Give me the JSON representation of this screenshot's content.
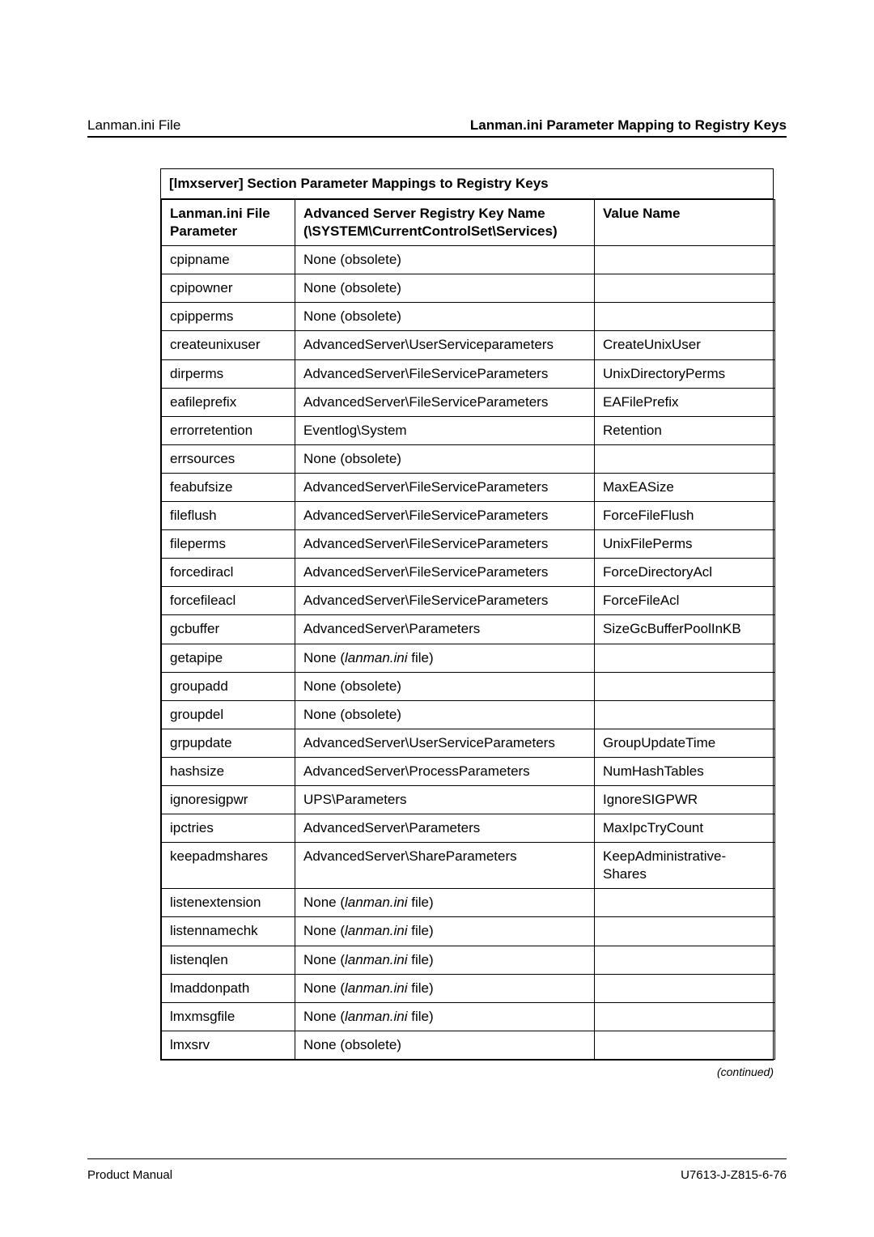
{
  "header": {
    "left": "Lanman.ini File",
    "right": "Lanman.ini Parameter Mapping to Registry Keys"
  },
  "table": {
    "title": "[lmxserver] Section Parameter Mappings to Registry Keys",
    "columns": {
      "c1": "Lanman.ini File Parameter",
      "c2": "Advanced Server Registry Key Name (\\SYSTEM\\CurrentControlSet\\Services)",
      "c3": "Value Name"
    },
    "rows": [
      {
        "p": "cpipname",
        "k": "None (obsolete)",
        "v": ""
      },
      {
        "p": "cpipowner",
        "k": "None (obsolete)",
        "v": ""
      },
      {
        "p": "cpipperms",
        "k": "None (obsolete)",
        "v": ""
      },
      {
        "p": "createunixuser",
        "k": "AdvancedServer\\UserServiceparameters",
        "v": "CreateUnixUser"
      },
      {
        "p": "dirperms",
        "k": "AdvancedServer\\FileServiceParameters",
        "v": "UnixDirectoryPerms"
      },
      {
        "p": "eafileprefix",
        "k": "AdvancedServer\\FileServiceParameters",
        "v": "EAFilePrefix"
      },
      {
        "p": "errorretention",
        "k": "Eventlog\\System",
        "v": "Retention"
      },
      {
        "p": "errsources",
        "k": "None (obsolete)",
        "v": ""
      },
      {
        "p": "feabufsize",
        "k": "AdvancedServer\\FileServiceParameters",
        "v": "MaxEASize"
      },
      {
        "p": "fileflush",
        "k": "AdvancedServer\\FileServiceParameters",
        "v": "ForceFileFlush"
      },
      {
        "p": "fileperms",
        "k": "AdvancedServer\\FileServiceParameters",
        "v": "UnixFilePerms"
      },
      {
        "p": "forcediracl",
        "k": "AdvancedServer\\FileServiceParameters",
        "v": "ForceDirectoryAcl"
      },
      {
        "p": "forcefileacl",
        "k": "AdvancedServer\\FileServiceParameters",
        "v": "ForceFileAcl"
      },
      {
        "p": "gcbuffer",
        "k": "AdvancedServer\\Parameters",
        "v": "SizeGcBufferPoolInKB"
      },
      {
        "p": "getapipe",
        "k_pre": "None (",
        "k_italic": "lanman.ini",
        "k_post": " file)",
        "v": ""
      },
      {
        "p": "groupadd",
        "k": "None (obsolete)",
        "v": ""
      },
      {
        "p": "groupdel",
        "k": "None (obsolete)",
        "v": ""
      },
      {
        "p": "grpupdate",
        "k": "AdvancedServer\\UserServiceParameters",
        "v": "GroupUpdateTime"
      },
      {
        "p": "hashsize",
        "k": "AdvancedServer\\ProcessParameters",
        "v": "NumHashTables"
      },
      {
        "p": "ignoresigpwr",
        "k": "UPS\\Parameters",
        "v": "IgnoreSIGPWR"
      },
      {
        "p": "ipctries",
        "k": "AdvancedServer\\Parameters",
        "v": "MaxIpcTryCount"
      },
      {
        "p": "keepadmshares",
        "k": "AdvancedServer\\ShareParameters",
        "v": "KeepAdministrative-Shares"
      },
      {
        "p": "listenextension",
        "k_pre": "None (",
        "k_italic": "lanman.ini",
        "k_post": " file)",
        "v": ""
      },
      {
        "p": "listennamechk",
        "k_pre": "None (",
        "k_italic": "lanman.ini",
        "k_post": " file)",
        "v": ""
      },
      {
        "p": "listenqlen",
        "k_pre": "None (",
        "k_italic": "lanman.ini",
        "k_post": " file)",
        "v": ""
      },
      {
        "p": "lmaddonpath",
        "k_pre": "None (",
        "k_italic": "lanman.ini",
        "k_post": " file)",
        "v": ""
      },
      {
        "p": "lmxmsgfile",
        "k_pre": "None (",
        "k_italic": "lanman.ini",
        "k_post": " file)",
        "v": ""
      },
      {
        "p": "lmxsrv",
        "k": "None (obsolete)",
        "v": ""
      }
    ]
  },
  "continued": "(continued)",
  "footer": {
    "left": "Product Manual",
    "right": "U7613-J-Z815-6-76"
  }
}
